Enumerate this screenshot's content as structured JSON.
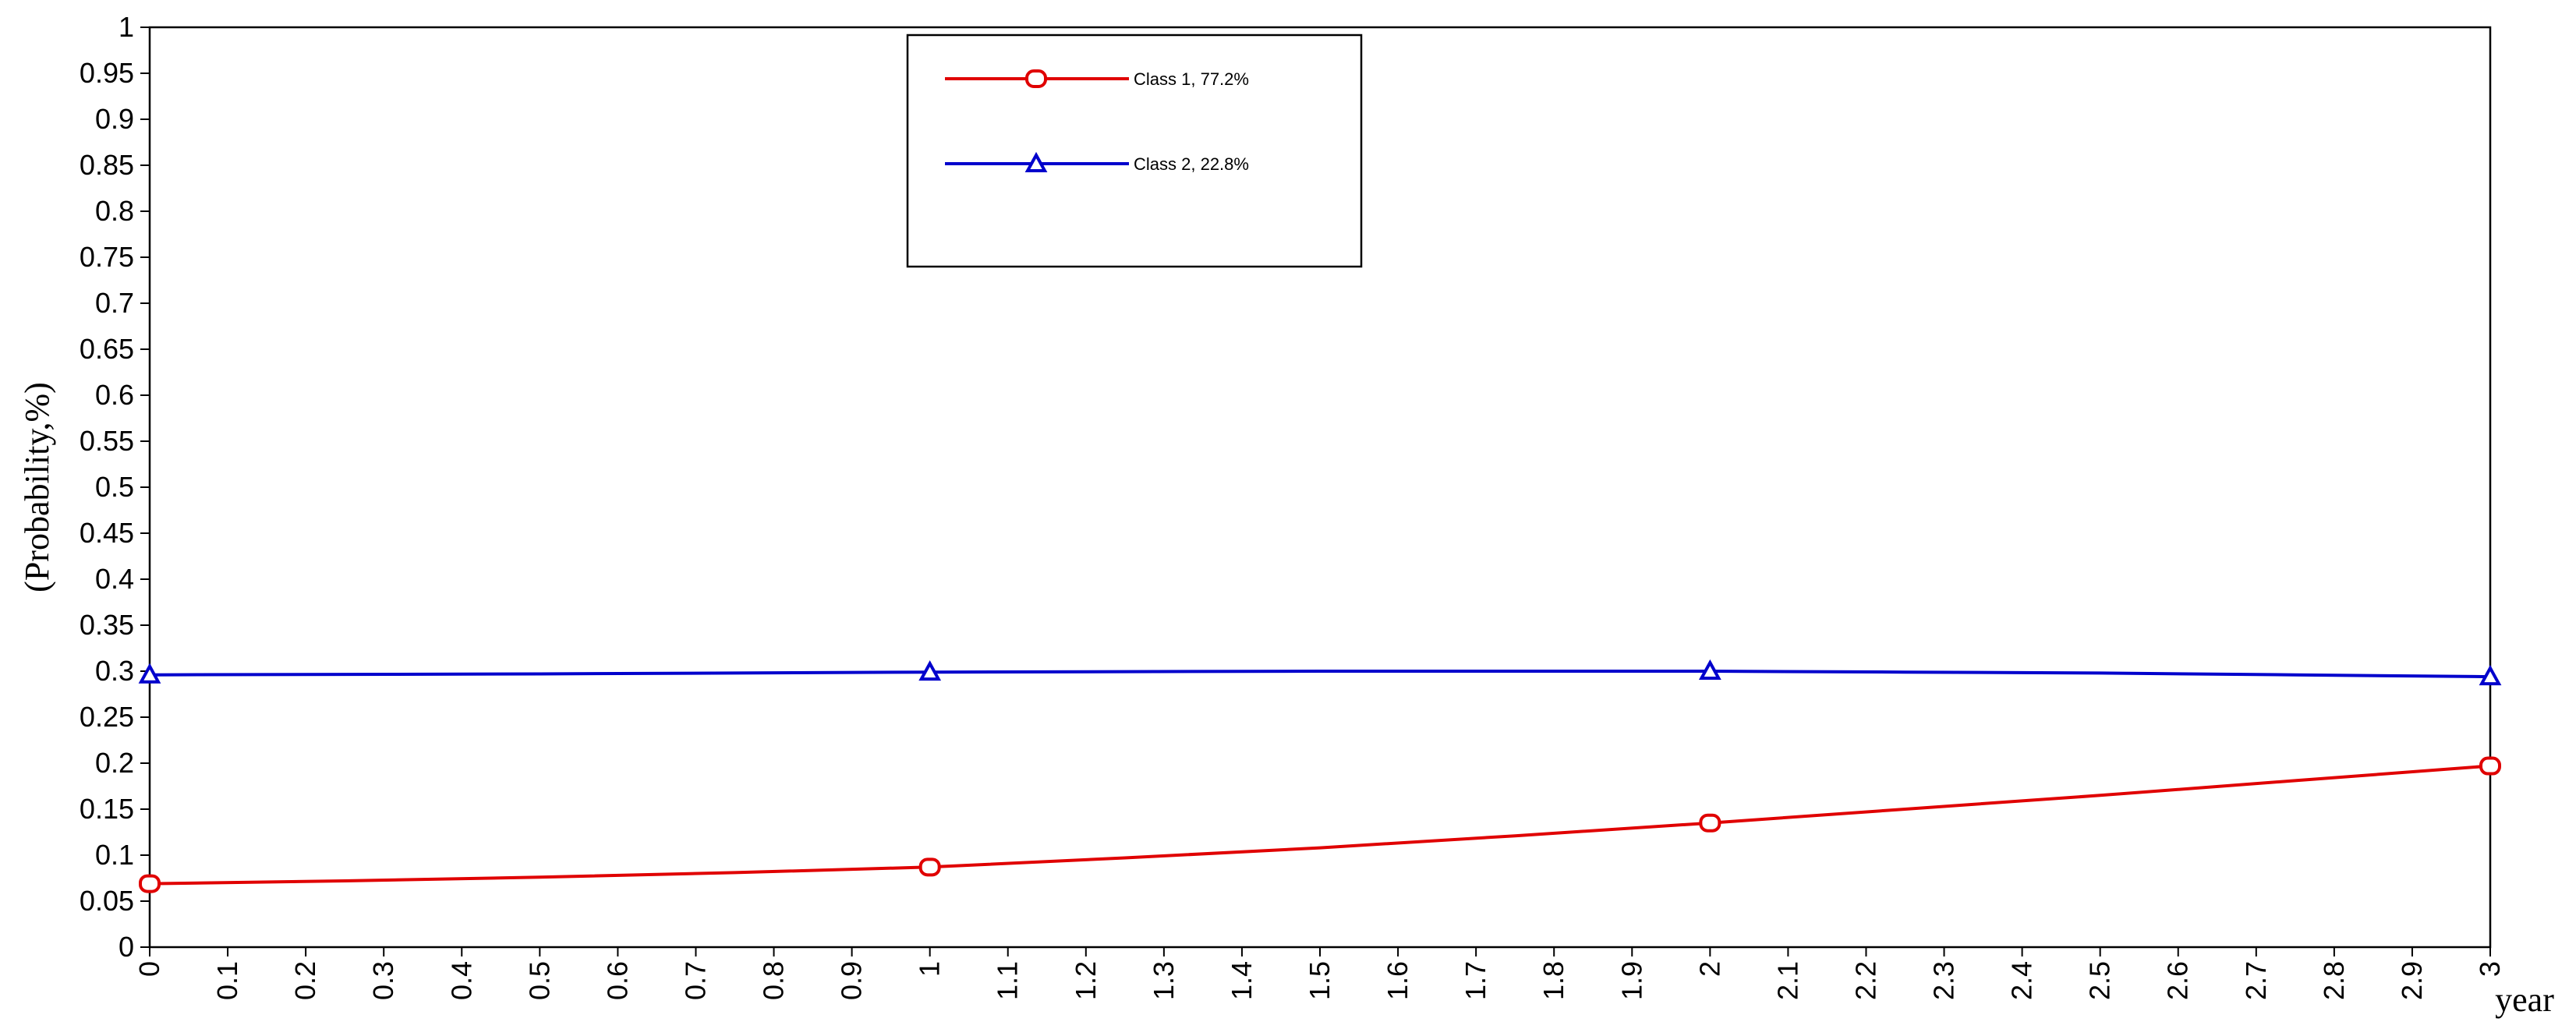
{
  "chart_data": {
    "type": "line",
    "xlabel": "year",
    "ylabel": "(Probability,%)",
    "xlim": [
      0,
      3
    ],
    "ylim": [
      0,
      1
    ],
    "x_ticks": [
      "0",
      "0.1",
      "0.2",
      "0.3",
      "0.4",
      "0.5",
      "0.6",
      "0.7",
      "0.8",
      "0.9",
      "1",
      "1.1",
      "1.2",
      "1.3",
      "1.4",
      "1.5",
      "1.6",
      "1.7",
      "1.8",
      "1.9",
      "2",
      "2.1",
      "2.2",
      "2.3",
      "2.4",
      "2.5",
      "2.6",
      "2.7",
      "2.8",
      "2.9",
      "3"
    ],
    "y_ticks": [
      "0",
      "0.05",
      "0.1",
      "0.15",
      "0.2",
      "0.25",
      "0.3",
      "0.35",
      "0.4",
      "0.45",
      "0.5",
      "0.55",
      "0.6",
      "0.65",
      "0.7",
      "0.75",
      "0.8",
      "0.85",
      "0.9",
      "0.95",
      "1"
    ],
    "grid": false,
    "legend_position": "top-center",
    "series": [
      {
        "name": "Class 1, 77.2%",
        "color": "#e00000",
        "marker": "circle",
        "x": [
          0,
          0.25,
          0.5,
          0.75,
          1,
          1.25,
          1.5,
          1.75,
          2,
          2.25,
          2.5,
          2.75,
          3
        ],
        "y": [
          0.069,
          0.072,
          0.076,
          0.081,
          0.087,
          0.097,
          0.108,
          0.121,
          0.135,
          0.15,
          0.165,
          0.181,
          0.197
        ],
        "marker_x": [
          0,
          1,
          2,
          3
        ],
        "marker_y": [
          0.069,
          0.087,
          0.135,
          0.197
        ]
      },
      {
        "name": "Class 2, 22.8%",
        "color": "#0000cc",
        "marker": "triangle",
        "x": [
          0,
          0.5,
          1,
          1.5,
          2,
          2.25,
          2.5,
          2.75,
          3
        ],
        "y": [
          0.296,
          0.297,
          0.299,
          0.3,
          0.3,
          0.299,
          0.298,
          0.296,
          0.294
        ],
        "marker_x": [
          0,
          1,
          2,
          3
        ],
        "marker_y": [
          0.296,
          0.299,
          0.3,
          0.294
        ]
      }
    ]
  }
}
